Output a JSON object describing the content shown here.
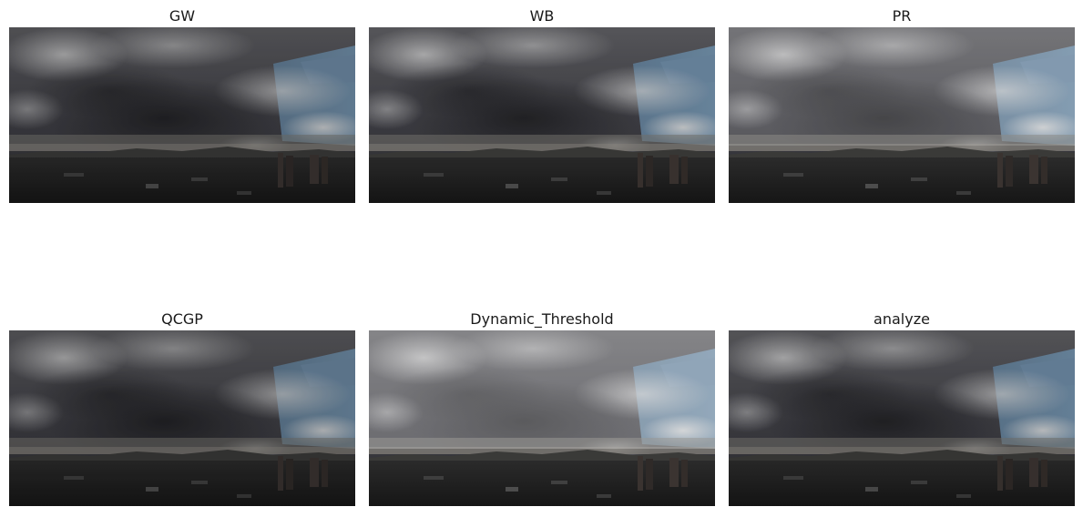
{
  "figure": {
    "panels": [
      {
        "title": "GW"
      },
      {
        "title": "WB"
      },
      {
        "title": "PR"
      },
      {
        "title": "QCGP"
      },
      {
        "title": "Dynamic_Threshold"
      },
      {
        "title": "analyze"
      }
    ]
  }
}
